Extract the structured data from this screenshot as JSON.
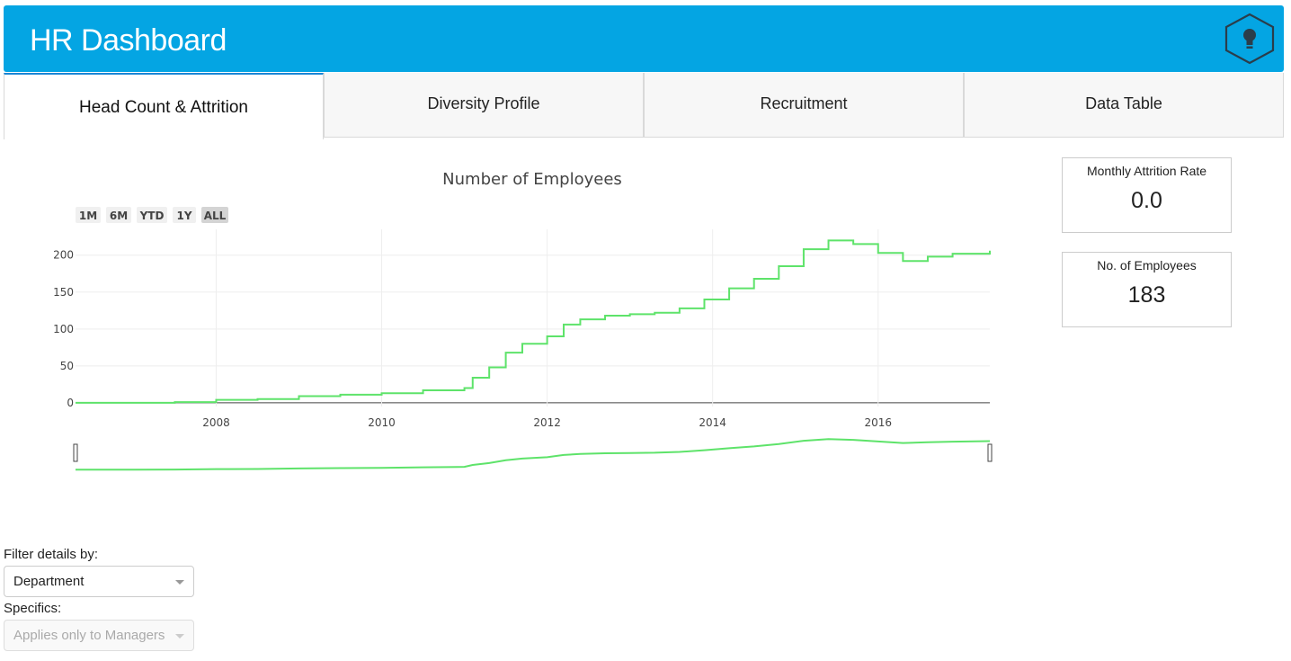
{
  "header": {
    "title": "HR Dashboard",
    "logo_icon": "lightbulb-hexagon-icon"
  },
  "tabs": [
    {
      "label": "Head Count & Attrition",
      "active": true
    },
    {
      "label": "Diversity Profile",
      "active": false
    },
    {
      "label": "Recruitment",
      "active": false
    },
    {
      "label": "Data Table",
      "active": false
    }
  ],
  "range_buttons": [
    "1M",
    "6M",
    "YTD",
    "1Y",
    "ALL"
  ],
  "active_range": "ALL",
  "kpis": [
    {
      "label": "Monthly Attrition Rate",
      "value": "0.0"
    },
    {
      "label": "No. of Employees",
      "value": "183"
    }
  ],
  "filter": {
    "label": "Filter details by:",
    "value": "Department",
    "specifics_label": "Specifics:",
    "specifics_placeholder": "Applies only to Managers"
  },
  "colors": {
    "header": "#04a5e3",
    "line": "#5ee36a",
    "tab_accent": "#1a86d6"
  },
  "chart_data": {
    "type": "line",
    "title": "Number of Employees",
    "xlabel": "",
    "ylabel": "",
    "xlim": [
      2006.3,
      2017.35
    ],
    "ylim": [
      -5,
      235
    ],
    "x_ticks": [
      2008,
      2010,
      2012,
      2014,
      2016
    ],
    "y_ticks": [
      0,
      50,
      100,
      150,
      200
    ],
    "grid": true,
    "range_slider": true,
    "series": [
      {
        "x": [
          2006.3,
          2007.0,
          2007.5,
          2008.0,
          2008.5,
          2009.0,
          2009.5,
          2010.0,
          2010.5,
          2011.0,
          2011.1,
          2011.3,
          2011.5,
          2011.7,
          2012.0,
          2012.2,
          2012.4,
          2012.7,
          2013.0,
          2013.3,
          2013.6,
          2013.9,
          2014.2,
          2014.5,
          2014.8,
          2015.1,
          2015.4,
          2015.7,
          2016.0,
          2016.3,
          2016.6,
          2016.9,
          2017.35
        ],
        "y": [
          0,
          0,
          1,
          4,
          5,
          9,
          11,
          13,
          17,
          20,
          34,
          48,
          68,
          80,
          90,
          106,
          113,
          118,
          120,
          122,
          128,
          140,
          155,
          168,
          185,
          208,
          220,
          215,
          203,
          192,
          198,
          202,
          206
        ]
      }
    ]
  }
}
